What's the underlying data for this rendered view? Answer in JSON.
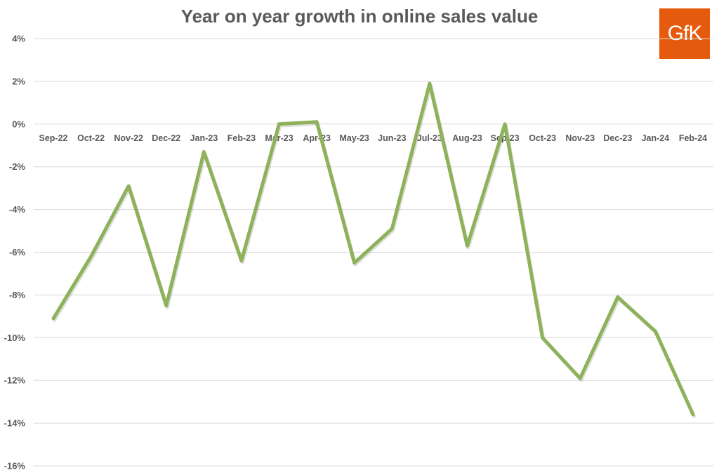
{
  "chart_data": {
    "type": "line",
    "title": "Year on year growth in online sales value",
    "categories": [
      "Sep-22",
      "Oct-22",
      "Nov-22",
      "Dec-22",
      "Jan-23",
      "Feb-23",
      "Mar-23",
      "Apr-23",
      "May-23",
      "Jun-23",
      "Jul-23",
      "Aug-23",
      "Sep-23",
      "Oct-23",
      "Nov-23",
      "Dec-23",
      "Jan-24",
      "Feb-24"
    ],
    "series": [
      {
        "values": [
          -9.1,
          -6.2,
          -2.9,
          -8.5,
          -1.3,
          -6.4,
          0.0,
          0.1,
          -6.5,
          -4.9,
          1.9,
          -5.7,
          0.0,
          -10.0,
          -11.9,
          -8.1,
          -9.7,
          -13.6
        ]
      }
    ],
    "ylim": [
      -16,
      4
    ],
    "yticks": [
      4,
      2,
      0,
      -2,
      -4,
      -6,
      -8,
      -10,
      -12,
      -14,
      -16
    ],
    "ytick_labels": [
      "4%",
      "2%",
      "0%",
      "-2%",
      "-4%",
      "-6%",
      "-8%",
      "-10%",
      "-12%",
      "-14%",
      "-16%"
    ],
    "grid": true,
    "line_color": "#8db25a"
  },
  "logo": {
    "text": "GfK",
    "color": "#e55a0c"
  }
}
